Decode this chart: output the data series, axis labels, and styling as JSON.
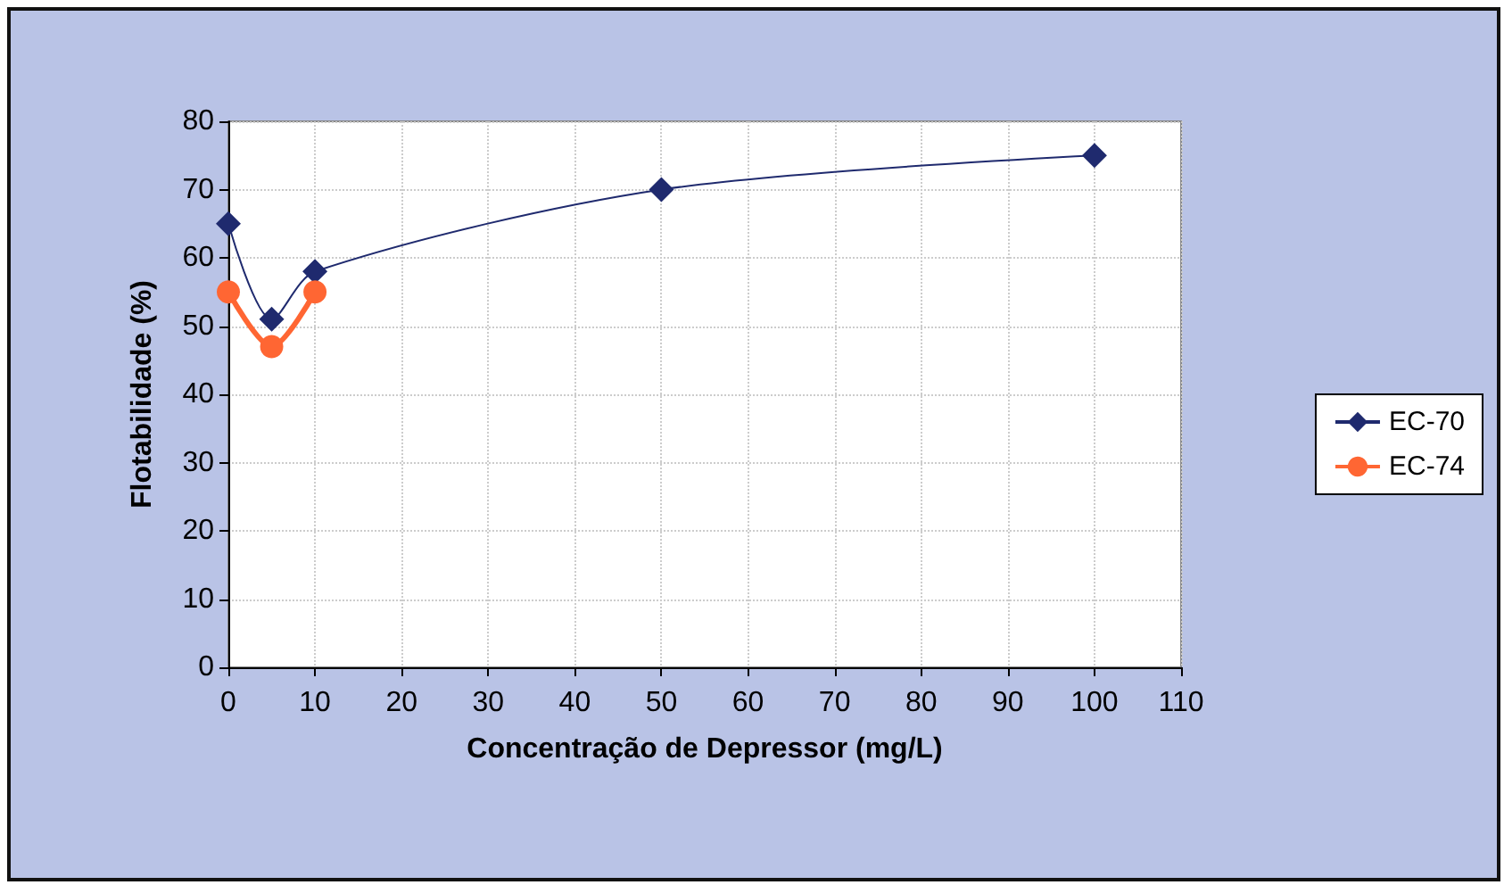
{
  "chart_data": {
    "type": "line",
    "xlabel": "Concentração de Depressor (mg/L)",
    "ylabel": "Flotabilidade (%)",
    "xlim": [
      0,
      110
    ],
    "xticks": [
      0,
      10,
      20,
      30,
      40,
      50,
      60,
      70,
      80,
      90,
      100,
      110
    ],
    "ylim": [
      0,
      80
    ],
    "yticks": [
      0,
      10,
      20,
      30,
      40,
      50,
      60,
      70,
      80
    ],
    "grid": true,
    "legend": "right",
    "series": [
      {
        "name": "EC-70",
        "color": "#1f2a6e",
        "marker": "diamond",
        "x": [
          0,
          5,
          10,
          50,
          100
        ],
        "values": [
          65,
          51,
          58,
          70,
          75
        ]
      },
      {
        "name": "EC-74",
        "color": "#ff6633",
        "marker": "circle",
        "x": [
          0,
          5,
          10
        ],
        "values": [
          55,
          47,
          55
        ]
      }
    ]
  }
}
